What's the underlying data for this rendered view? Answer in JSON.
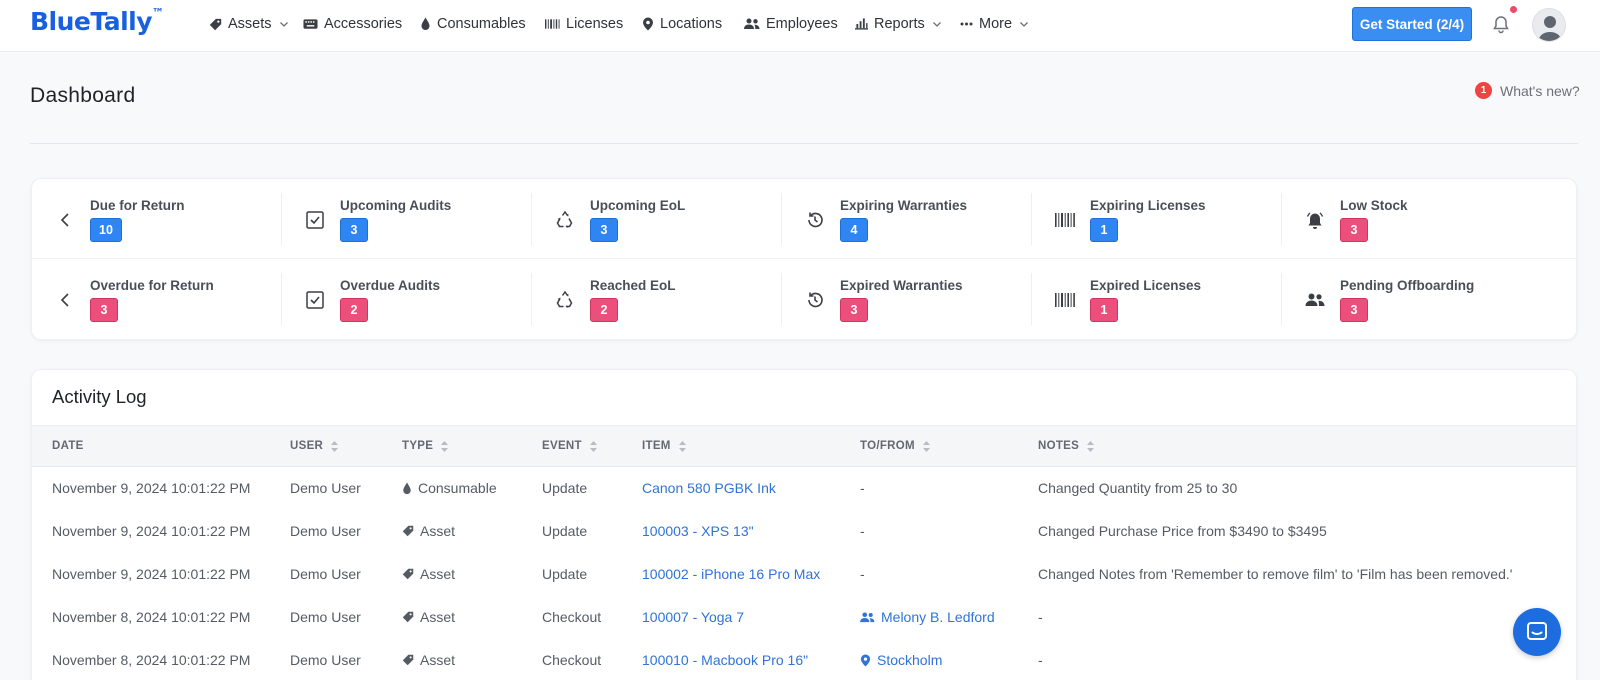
{
  "app": {
    "logo": "BlueTally",
    "logo_mark": "™"
  },
  "nav": {
    "items": [
      {
        "label": "Assets",
        "icon": "tag-icon",
        "dropdown": true
      },
      {
        "label": "Accessories",
        "icon": "keyboard-icon",
        "dropdown": false
      },
      {
        "label": "Consumables",
        "icon": "drop-icon",
        "dropdown": false
      },
      {
        "label": "Licenses",
        "icon": "barcode-icon",
        "dropdown": false
      },
      {
        "label": "Locations",
        "icon": "map-pin-icon",
        "dropdown": false
      },
      {
        "label": "Employees",
        "icon": "users-icon",
        "dropdown": false
      },
      {
        "label": "Reports",
        "icon": "bar-chart-icon",
        "dropdown": true
      },
      {
        "label": "More",
        "icon": "ellipsis-icon",
        "dropdown": true
      }
    ],
    "get_started": "Get Started (2/4)"
  },
  "header": {
    "title": "Dashboard",
    "whats_new": "What's new?",
    "whats_new_count": "1"
  },
  "stats": {
    "row1": [
      {
        "label": "Due for Return",
        "count": "10",
        "color": "blue",
        "icon": "chevron-left-icon"
      },
      {
        "label": "Upcoming Audits",
        "count": "3",
        "color": "blue",
        "icon": "checkbox-icon"
      },
      {
        "label": "Upcoming EoL",
        "count": "3",
        "color": "blue",
        "icon": "recycle-icon"
      },
      {
        "label": "Expiring Warranties",
        "count": "4",
        "color": "blue",
        "icon": "history-icon"
      },
      {
        "label": "Expiring Licenses",
        "count": "1",
        "color": "blue",
        "icon": "barcode-icon"
      },
      {
        "label": "Low Stock",
        "count": "3",
        "color": "red",
        "icon": "alarm-icon"
      }
    ],
    "row2": [
      {
        "label": "Overdue for Return",
        "count": "3",
        "color": "red",
        "icon": "chevron-left-icon"
      },
      {
        "label": "Overdue Audits",
        "count": "2",
        "color": "red",
        "icon": "checkbox-icon"
      },
      {
        "label": "Reached EoL",
        "count": "2",
        "color": "red",
        "icon": "recycle-icon"
      },
      {
        "label": "Expired Warranties",
        "count": "3",
        "color": "red",
        "icon": "history-icon"
      },
      {
        "label": "Expired Licenses",
        "count": "1",
        "color": "red",
        "icon": "barcode-icon"
      },
      {
        "label": "Pending Offboarding",
        "count": "3",
        "color": "red",
        "icon": "users-icon"
      }
    ]
  },
  "activity": {
    "title": "Activity Log",
    "columns": [
      "DATE",
      "USER",
      "TYPE",
      "EVENT",
      "ITEM",
      "TO/FROM",
      "NOTES"
    ],
    "rows": [
      {
        "date": "November 9, 2024 10:01:22 PM",
        "user": "Demo User",
        "type": "Consumable",
        "type_icon": "drop-icon",
        "event": "Update",
        "item": "Canon 580 PGBK Ink",
        "tofrom": "-",
        "tofrom_icon": "",
        "notes": "Changed Quantity from 25 to 30"
      },
      {
        "date": "November 9, 2024 10:01:22 PM",
        "user": "Demo User",
        "type": "Asset",
        "type_icon": "tag-icon",
        "event": "Update",
        "item": "100003 - XPS 13\"",
        "tofrom": "-",
        "tofrom_icon": "",
        "notes": "Changed Purchase Price from $3490 to $3495"
      },
      {
        "date": "November 9, 2024 10:01:22 PM",
        "user": "Demo User",
        "type": "Asset",
        "type_icon": "tag-icon",
        "event": "Update",
        "item": "100002 - iPhone 16 Pro Max",
        "tofrom": "-",
        "tofrom_icon": "",
        "notes": "Changed Notes from 'Remember to remove film' to 'Film has been removed.'"
      },
      {
        "date": "November 8, 2024 10:01:22 PM",
        "user": "Demo User",
        "type": "Asset",
        "type_icon": "tag-icon",
        "event": "Checkout",
        "item": "100007 - Yoga 7",
        "tofrom": "Melony B. Ledford",
        "tofrom_icon": "users-icon",
        "notes": "-"
      },
      {
        "date": "November 8, 2024 10:01:22 PM",
        "user": "Demo User",
        "type": "Asset",
        "type_icon": "tag-icon",
        "event": "Checkout",
        "item": "100010 - Macbook Pro 16\"",
        "tofrom": "Stockholm",
        "tofrom_icon": "map-pin-icon",
        "notes": "-"
      }
    ]
  },
  "colors": {
    "brand": "#1a5fe0",
    "badge_blue": "#2f86f2",
    "badge_red": "#ec4f7c",
    "link": "#2f74d6"
  }
}
